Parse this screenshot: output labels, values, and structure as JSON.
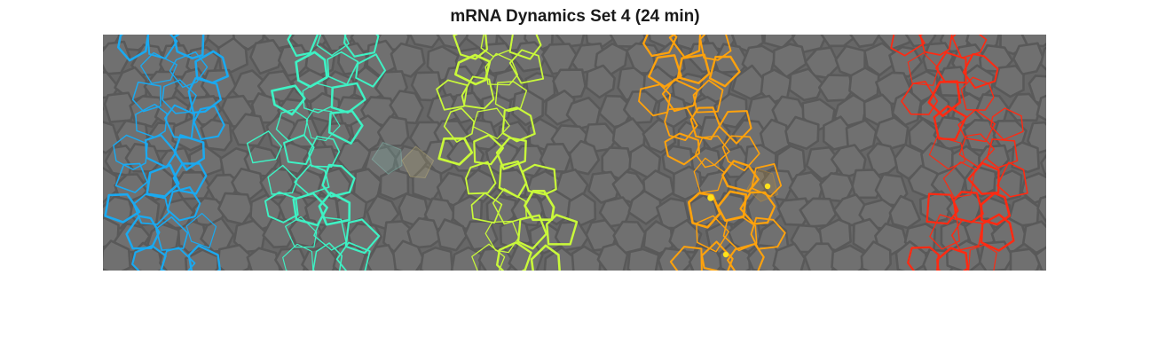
{
  "figure": {
    "title": "mRNA Dynamics Set 4 (24 min)"
  },
  "image_panel": {
    "background_color": "#676767",
    "cell_edge_color": "#595959",
    "stripes": [
      {
        "color": "#1aa9f0"
      },
      {
        "color": "#3ef2c4"
      },
      {
        "color": "#c9f93a"
      },
      {
        "color": "#ffa20c"
      },
      {
        "color": "#ff2a12"
      }
    ],
    "spot_color": "#ffe21a"
  }
}
